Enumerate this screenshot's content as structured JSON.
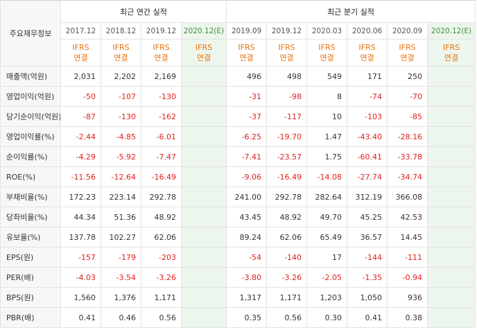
{
  "table": {
    "row_header_title": "주요재무정보",
    "annual_title": "최근 연간 실적",
    "quarterly_title": "최근 분기 실적",
    "annual_periods": [
      "2017.12",
      "2018.12",
      "2019.12",
      "2020.12(E)"
    ],
    "quarterly_periods": [
      "2019.09",
      "2019.12",
      "2020.03",
      "2020.06",
      "2020.09",
      "2020.12(E)"
    ],
    "standard_line1": "IFRS",
    "standard_line2": "연결",
    "rows": [
      {
        "label": "매출액(억원)",
        "annual": [
          "2,031",
          "2,202",
          "2,169",
          ""
        ],
        "quarterly": [
          "496",
          "498",
          "549",
          "171",
          "250",
          ""
        ]
      },
      {
        "label": "영업이익(억원)",
        "annual": [
          "-50",
          "-107",
          "-130",
          ""
        ],
        "quarterly": [
          "-31",
          "-98",
          "8",
          "-74",
          "-70",
          ""
        ]
      },
      {
        "label": "당기순이익(억원)",
        "annual": [
          "-87",
          "-130",
          "-162",
          ""
        ],
        "quarterly": [
          "-37",
          "-117",
          "10",
          "-103",
          "-85",
          ""
        ]
      },
      {
        "label": "영업이익률(%)",
        "annual": [
          "-2.44",
          "-4.85",
          "-6.01",
          ""
        ],
        "quarterly": [
          "-6.25",
          "-19.70",
          "1.47",
          "-43.40",
          "-28.16",
          ""
        ]
      },
      {
        "label": "순이익률(%)",
        "annual": [
          "-4.29",
          "-5.92",
          "-7.47",
          ""
        ],
        "quarterly": [
          "-7.41",
          "-23.57",
          "1.75",
          "-60.41",
          "-33.78",
          ""
        ]
      },
      {
        "label": "ROE(%)",
        "annual": [
          "-11.56",
          "-12.64",
          "-16.49",
          ""
        ],
        "quarterly": [
          "-9.06",
          "-16.49",
          "-14.08",
          "-27.74",
          "-34.74",
          ""
        ]
      },
      {
        "label": "부채비율(%)",
        "annual": [
          "172.23",
          "223.14",
          "292.78",
          ""
        ],
        "quarterly": [
          "241.00",
          "292.78",
          "282.64",
          "312.19",
          "366.08",
          ""
        ]
      },
      {
        "label": "당좌비율(%)",
        "annual": [
          "44.34",
          "51.36",
          "48.92",
          ""
        ],
        "quarterly": [
          "43.45",
          "48.92",
          "49.70",
          "45.25",
          "42.53",
          ""
        ]
      },
      {
        "label": "유보율(%)",
        "annual": [
          "137.78",
          "102.27",
          "62.06",
          ""
        ],
        "quarterly": [
          "89.24",
          "62.06",
          "65.49",
          "36.57",
          "14.45",
          ""
        ]
      },
      {
        "label": "EPS(원)",
        "annual": [
          "-157",
          "-179",
          "-203",
          ""
        ],
        "quarterly": [
          "-54",
          "-140",
          "17",
          "-144",
          "-111",
          ""
        ]
      },
      {
        "label": "PER(배)",
        "annual": [
          "-4.03",
          "-3.54",
          "-3.26",
          ""
        ],
        "quarterly": [
          "-3.80",
          "-3.26",
          "-2.05",
          "-1.35",
          "-0.94",
          ""
        ]
      },
      {
        "label": "BPS(원)",
        "annual": [
          "1,560",
          "1,376",
          "1,171",
          ""
        ],
        "quarterly": [
          "1,317",
          "1,171",
          "1,203",
          "1,050",
          "936",
          ""
        ]
      },
      {
        "label": "PBR(배)",
        "annual": [
          "0.41",
          "0.46",
          "0.56",
          ""
        ],
        "quarterly": [
          "0.35",
          "0.56",
          "0.30",
          "0.41",
          "0.38",
          ""
        ]
      }
    ],
    "group_starts": [
      0,
      3,
      6,
      9
    ]
  },
  "colors": {
    "negative": "#e0201f",
    "standard": "#e8710a",
    "estimate_bg": "#edf6ed",
    "estimate_text": "#3a8f3a"
  }
}
